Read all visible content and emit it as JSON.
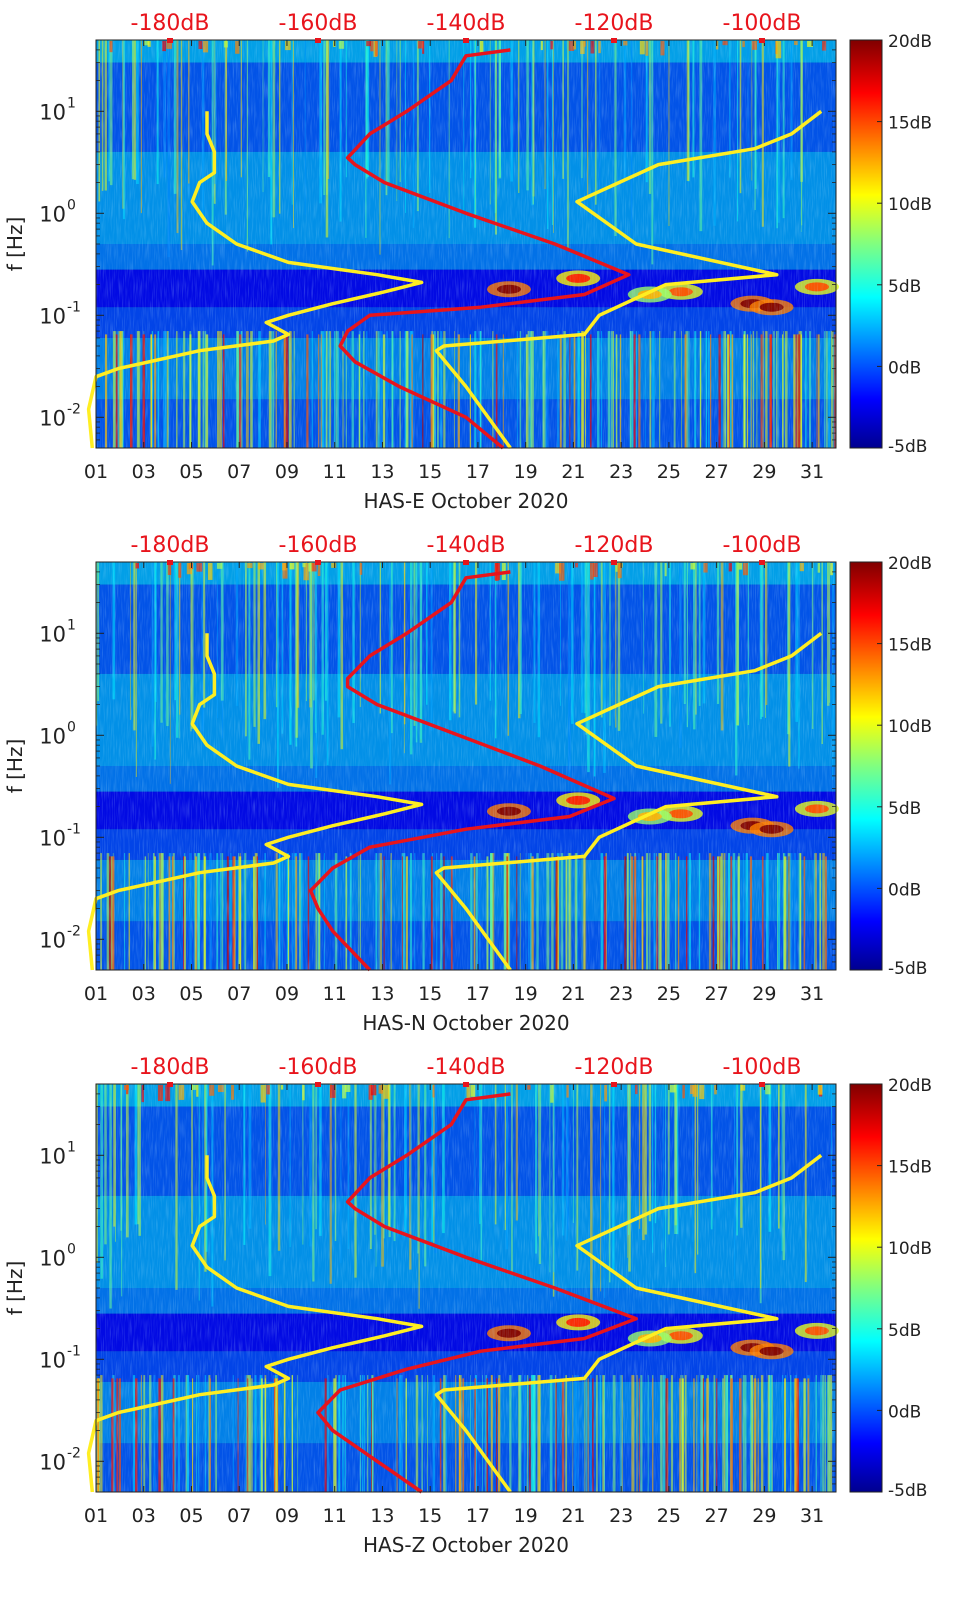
{
  "figure": {
    "panels": [
      {
        "id": "E",
        "xlabel": "HAS-E October 2020",
        "ylabel": "f [Hz]",
        "top_tick_labels": [
          "-180dB",
          "-160dB",
          "-140dB",
          "-120dB",
          "-100dB"
        ],
        "x_tick_labels": [
          "01",
          "03",
          "05",
          "07",
          "09",
          "11",
          "13",
          "15",
          "17",
          "19",
          "21",
          "23",
          "25",
          "27",
          "29",
          "31"
        ],
        "y_tick_labels": [
          "10",
          "10",
          "10",
          "10"
        ],
        "y_tick_exponents": [
          "1",
          "0",
          "-1",
          "-2"
        ],
        "colorbar_tick_labels": [
          "20dB",
          "15dB",
          "10dB",
          "5dB",
          "0dB",
          "-5dB"
        ]
      },
      {
        "id": "N",
        "xlabel": "HAS-N October 2020",
        "ylabel": "f [Hz]",
        "top_tick_labels": [
          "-180dB",
          "-160dB",
          "-140dB",
          "-120dB",
          "-100dB"
        ],
        "x_tick_labels": [
          "01",
          "03",
          "05",
          "07",
          "09",
          "11",
          "13",
          "15",
          "17",
          "19",
          "21",
          "23",
          "25",
          "27",
          "29",
          "31"
        ],
        "y_tick_labels": [
          "10",
          "10",
          "10",
          "10"
        ],
        "y_tick_exponents": [
          "1",
          "0",
          "-1",
          "-2"
        ],
        "colorbar_tick_labels": [
          "20dB",
          "15dB",
          "10dB",
          "5dB",
          "0dB",
          "-5dB"
        ]
      },
      {
        "id": "Z",
        "xlabel": "HAS-Z October 2020",
        "ylabel": "f [Hz]",
        "top_tick_labels": [
          "-180dB",
          "-160dB",
          "-140dB",
          "-120dB",
          "-100dB"
        ],
        "x_tick_labels": [
          "01",
          "03",
          "05",
          "07",
          "09",
          "11",
          "13",
          "15",
          "17",
          "19",
          "21",
          "23",
          "25",
          "27",
          "29",
          "31"
        ],
        "y_tick_labels": [
          "10",
          "10",
          "10",
          "10"
        ],
        "y_tick_exponents": [
          "1",
          "0",
          "-1",
          "-2"
        ],
        "colorbar_tick_labels": [
          "20dB",
          "15dB",
          "10dB",
          "5dB",
          "0dB",
          "-5dB"
        ]
      }
    ],
    "colors": {
      "top_axis_text": "#e8141c",
      "red_curve": "#e8141c",
      "yellow_curve": "#ffee22",
      "axis_text": "#222222",
      "background_low": "#0a2aa0"
    }
  },
  "chart_data": [
    {
      "type": "heatmap",
      "title": "",
      "xlabel": "HAS-E October 2020",
      "ylabel": "f [Hz]",
      "x_scale": "day of month",
      "xlim": [
        1,
        32
      ],
      "y_scale": "log",
      "ylim": [
        0.005,
        50
      ],
      "colorbar": {
        "label": "",
        "range": [
          -5,
          20
        ],
        "unit": "dB",
        "colormap": "jet"
      },
      "top_axis": {
        "label": "",
        "range": [
          -190,
          -90
        ],
        "unit": "dB",
        "ticks": [
          -180,
          -160,
          -140,
          -120,
          -100
        ]
      },
      "series": [
        {
          "color": "yellow",
          "axis": "top",
          "points": [
            [
              -190.5,
              0.005
            ],
            [
              -191,
              0.012
            ],
            [
              -190,
              0.025
            ],
            [
              -187,
              0.03
            ],
            [
              -176,
              0.045
            ],
            [
              -166,
              0.056
            ],
            [
              -164,
              0.065
            ],
            [
              -167,
              0.085
            ],
            [
              -164,
              0.1
            ],
            [
              -158,
              0.13
            ],
            [
              -151,
              0.17
            ],
            [
              -146,
              0.21
            ],
            [
              -152,
              0.25
            ],
            [
              -164,
              0.33
            ],
            [
              -171,
              0.5
            ],
            [
              -175,
              0.8
            ],
            [
              -177,
              1.3
            ],
            [
              -176,
              2.0
            ],
            [
              -174,
              2.5
            ],
            [
              -174,
              4.0
            ],
            [
              -175,
              6.0
            ],
            [
              -175,
              10.0
            ]
          ]
        },
        {
          "color": "yellow",
          "axis": "top",
          "points": [
            [
              -134,
              0.005
            ],
            [
              -140,
              0.02
            ],
            [
              -144,
              0.045
            ],
            [
              -143,
              0.05
            ],
            [
              -124,
              0.065
            ],
            [
              -122,
              0.1
            ],
            [
              -113,
              0.2
            ],
            [
              -98,
              0.25
            ],
            [
              -117,
              0.5
            ],
            [
              -125,
              1.3
            ],
            [
              -114,
              3.0
            ],
            [
              -101,
              4.3
            ],
            [
              -96,
              6.0
            ],
            [
              -92,
              10.0
            ]
          ]
        },
        {
          "color": "red",
          "axis": "top",
          "points": [
            [
              -135,
              0.005
            ],
            [
              -140,
              0.01
            ],
            [
              -149,
              0.02
            ],
            [
              -155,
              0.035
            ],
            [
              -157,
              0.05
            ],
            [
              -156,
              0.07
            ],
            [
              -153,
              0.1
            ],
            [
              -138,
              0.12
            ],
            [
              -124,
              0.16
            ],
            [
              -118,
              0.25
            ],
            [
              -128,
              0.5
            ],
            [
              -140,
              1.0
            ],
            [
              -151,
              2.0
            ],
            [
              -155,
              3.0
            ],
            [
              -156,
              3.5
            ],
            [
              -153,
              6.0
            ],
            [
              -148,
              10.0
            ],
            [
              -142,
              20.0
            ],
            [
              -140,
              35.0
            ],
            [
              -134,
              40.0
            ]
          ]
        }
      ]
    },
    {
      "type": "heatmap",
      "title": "",
      "xlabel": "HAS-N October 2020",
      "ylabel": "f [Hz]",
      "x_scale": "day of month",
      "xlim": [
        1,
        32
      ],
      "y_scale": "log",
      "ylim": [
        0.005,
        50
      ],
      "colorbar": {
        "label": "",
        "range": [
          -5,
          20
        ],
        "unit": "dB",
        "colormap": "jet"
      },
      "top_axis": {
        "label": "",
        "range": [
          -190,
          -90
        ],
        "unit": "dB",
        "ticks": [
          -180,
          -160,
          -140,
          -120,
          -100
        ]
      },
      "series": [
        {
          "color": "yellow",
          "axis": "top",
          "points": [
            [
              -190.5,
              0.005
            ],
            [
              -191,
              0.012
            ],
            [
              -190,
              0.025
            ],
            [
              -187,
              0.03
            ],
            [
              -176,
              0.045
            ],
            [
              -166,
              0.056
            ],
            [
              -164,
              0.065
            ],
            [
              -167,
              0.085
            ],
            [
              -164,
              0.1
            ],
            [
              -158,
              0.13
            ],
            [
              -151,
              0.17
            ],
            [
              -146,
              0.21
            ],
            [
              -152,
              0.25
            ],
            [
              -164,
              0.33
            ],
            [
              -171,
              0.5
            ],
            [
              -175,
              0.8
            ],
            [
              -177,
              1.3
            ],
            [
              -176,
              2.0
            ],
            [
              -174,
              2.5
            ],
            [
              -174,
              4.0
            ],
            [
              -175,
              6.0
            ],
            [
              -175,
              10.0
            ]
          ]
        },
        {
          "color": "yellow",
          "axis": "top",
          "points": [
            [
              -134,
              0.005
            ],
            [
              -140,
              0.02
            ],
            [
              -144,
              0.045
            ],
            [
              -143,
              0.05
            ],
            [
              -124,
              0.065
            ],
            [
              -122,
              0.1
            ],
            [
              -113,
              0.2
            ],
            [
              -98,
              0.25
            ],
            [
              -117,
              0.5
            ],
            [
              -125,
              1.3
            ],
            [
              -114,
              3.0
            ],
            [
              -101,
              4.3
            ],
            [
              -96,
              6.0
            ],
            [
              -92,
              10.0
            ]
          ]
        },
        {
          "color": "red",
          "axis": "top",
          "points": [
            [
              -153,
              0.005
            ],
            [
              -158,
              0.012
            ],
            [
              -160,
              0.02
            ],
            [
              -161,
              0.03
            ],
            [
              -158,
              0.05
            ],
            [
              -153,
              0.08
            ],
            [
              -140,
              0.12
            ],
            [
              -126,
              0.16
            ],
            [
              -120,
              0.24
            ],
            [
              -130,
              0.5
            ],
            [
              -141,
              1.0
            ],
            [
              -152,
              2.0
            ],
            [
              -156,
              3.0
            ],
            [
              -156,
              3.6
            ],
            [
              -153,
              6.0
            ],
            [
              -148,
              10.0
            ],
            [
              -142,
              20.0
            ],
            [
              -140,
              35.0
            ],
            [
              -134,
              40.0
            ]
          ]
        }
      ]
    },
    {
      "type": "heatmap",
      "title": "",
      "xlabel": "HAS-Z October 2020",
      "ylabel": "f [Hz]",
      "x_scale": "day of month",
      "xlim": [
        1,
        32
      ],
      "y_scale": "log",
      "ylim": [
        0.005,
        50
      ],
      "colorbar": {
        "label": "",
        "range": [
          -5,
          20
        ],
        "unit": "dB",
        "colormap": "jet"
      },
      "top_axis": {
        "label": "",
        "range": [
          -190,
          -90
        ],
        "unit": "dB",
        "ticks": [
          -180,
          -160,
          -140,
          -120,
          -100
        ]
      },
      "series": [
        {
          "color": "yellow",
          "axis": "top",
          "points": [
            [
              -190.5,
              0.005
            ],
            [
              -191,
              0.012
            ],
            [
              -190,
              0.025
            ],
            [
              -187,
              0.03
            ],
            [
              -176,
              0.045
            ],
            [
              -166,
              0.056
            ],
            [
              -164,
              0.065
            ],
            [
              -167,
              0.085
            ],
            [
              -164,
              0.1
            ],
            [
              -158,
              0.13
            ],
            [
              -151,
              0.17
            ],
            [
              -146,
              0.21
            ],
            [
              -152,
              0.25
            ],
            [
              -164,
              0.33
            ],
            [
              -171,
              0.5
            ],
            [
              -175,
              0.8
            ],
            [
              -177,
              1.3
            ],
            [
              -176,
              2.0
            ],
            [
              -174,
              2.5
            ],
            [
              -174,
              4.0
            ],
            [
              -175,
              6.0
            ],
            [
              -175,
              10.0
            ]
          ]
        },
        {
          "color": "yellow",
          "axis": "top",
          "points": [
            [
              -134,
              0.005
            ],
            [
              -140,
              0.02
            ],
            [
              -144,
              0.045
            ],
            [
              -143,
              0.05
            ],
            [
              -124,
              0.065
            ],
            [
              -122,
              0.1
            ],
            [
              -113,
              0.2
            ],
            [
              -98,
              0.25
            ],
            [
              -117,
              0.5
            ],
            [
              -125,
              1.3
            ],
            [
              -114,
              3.0
            ],
            [
              -101,
              4.3
            ],
            [
              -96,
              6.0
            ],
            [
              -92,
              10.0
            ]
          ]
        },
        {
          "color": "red",
          "axis": "top",
          "points": [
            [
              -146,
              0.005
            ],
            [
              -152,
              0.01
            ],
            [
              -158,
              0.02
            ],
            [
              -160,
              0.03
            ],
            [
              -157,
              0.05
            ],
            [
              -148,
              0.08
            ],
            [
              -138,
              0.12
            ],
            [
              -124,
              0.16
            ],
            [
              -117,
              0.25
            ],
            [
              -128,
              0.5
            ],
            [
              -140,
              1.0
            ],
            [
              -151,
              2.0
            ],
            [
              -155,
              3.0
            ],
            [
              -156,
              3.5
            ],
            [
              -153,
              6.0
            ],
            [
              -148,
              10.0
            ],
            [
              -142,
              20.0
            ],
            [
              -140,
              35.0
            ],
            [
              -134,
              40.0
            ]
          ]
        }
      ]
    }
  ]
}
